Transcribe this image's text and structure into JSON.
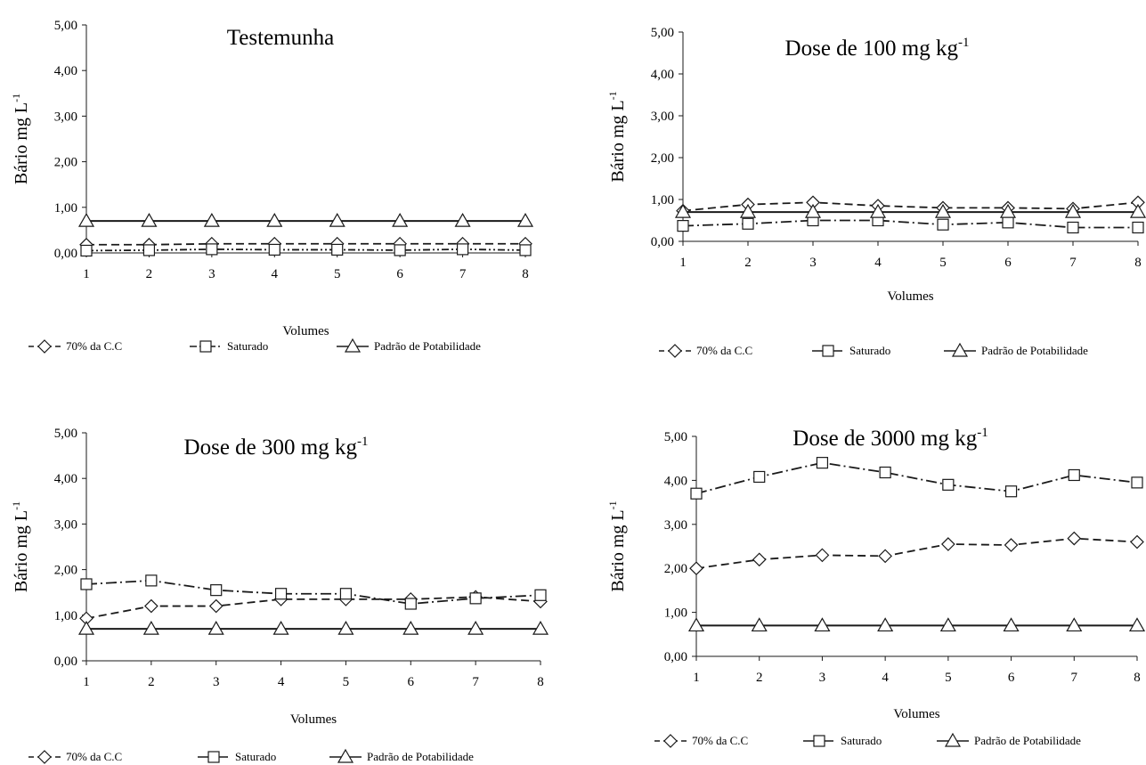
{
  "shared": {
    "xlabel": "Volumes",
    "ylabel": "Bário mg L",
    "ylabel_sup": "-1",
    "title_unit_sup": "-1",
    "y_ticks": [
      "0,00",
      "1,00",
      "2,00",
      "3,00",
      "4,00",
      "5,00"
    ],
    "x_ticks": [
      "1",
      "2",
      "3",
      "4",
      "5",
      "6",
      "7",
      "8"
    ],
    "legend": [
      "70% da C.C",
      "Saturado",
      "Padrão de Potabilidade"
    ],
    "colors": {
      "line": "#1a1a1a",
      "background": "#ffffff"
    }
  },
  "chart_data": [
    {
      "type": "line",
      "title": "Testemunha",
      "title_sup": "",
      "xlabel": "Volumes",
      "ylabel": "Bário mg L-1",
      "ylim": [
        0,
        5
      ],
      "x": [
        1,
        2,
        3,
        4,
        5,
        6,
        7,
        8
      ],
      "legend_position": "bottom",
      "series": [
        {
          "name": "70% da C.C",
          "marker": "diamond",
          "dash": "dashed",
          "values": [
            0.18,
            0.18,
            0.2,
            0.2,
            0.2,
            0.2,
            0.2,
            0.2
          ]
        },
        {
          "name": "Saturado",
          "marker": "square",
          "dash": "dash-dot-dot",
          "values": [
            0.05,
            0.06,
            0.08,
            0.07,
            0.07,
            0.06,
            0.08,
            0.06
          ]
        },
        {
          "name": "Padrão de Potabilidade",
          "marker": "triangle",
          "dash": "solid",
          "values": [
            0.7,
            0.7,
            0.7,
            0.7,
            0.7,
            0.7,
            0.7,
            0.7
          ]
        }
      ]
    },
    {
      "type": "line",
      "title": "Dose de 100 mg kg",
      "title_sup": "-1",
      "xlabel": "Volumes",
      "ylabel": "Bário mg L-1",
      "ylim": [
        0,
        5
      ],
      "x": [
        1,
        2,
        3,
        4,
        5,
        6,
        7,
        8
      ],
      "legend_position": "bottom",
      "series": [
        {
          "name": "70% da C.C",
          "marker": "diamond",
          "dash": "dashed",
          "values": [
            0.73,
            0.88,
            0.93,
            0.85,
            0.8,
            0.8,
            0.78,
            0.93
          ]
        },
        {
          "name": "Saturado",
          "marker": "square",
          "dash": "dash-dot",
          "values": [
            0.37,
            0.42,
            0.5,
            0.5,
            0.4,
            0.45,
            0.33,
            0.33
          ]
        },
        {
          "name": "Padrão de Potabilidade",
          "marker": "triangle",
          "dash": "solid",
          "values": [
            0.7,
            0.7,
            0.7,
            0.7,
            0.7,
            0.7,
            0.7,
            0.7
          ]
        }
      ]
    },
    {
      "type": "line",
      "title": "Dose de 300 mg kg",
      "title_sup": "-1",
      "xlabel": "Volumes",
      "ylabel": "Bário mg L-1",
      "ylim": [
        0,
        5
      ],
      "x": [
        1,
        2,
        3,
        4,
        5,
        6,
        7,
        8
      ],
      "legend_position": "bottom",
      "series": [
        {
          "name": "70% da C.C",
          "marker": "diamond",
          "dash": "dashed",
          "values": [
            0.93,
            1.2,
            1.2,
            1.35,
            1.35,
            1.35,
            1.4,
            1.3
          ]
        },
        {
          "name": "Saturado",
          "marker": "square",
          "dash": "dash-dot",
          "values": [
            1.68,
            1.76,
            1.55,
            1.47,
            1.47,
            1.25,
            1.37,
            1.44
          ]
        },
        {
          "name": "Padrão de Potabilidade",
          "marker": "triangle",
          "dash": "solid",
          "values": [
            0.7,
            0.7,
            0.7,
            0.7,
            0.7,
            0.7,
            0.7,
            0.7
          ]
        }
      ]
    },
    {
      "type": "line",
      "title": "Dose de 3000 mg kg",
      "title_sup": "-1",
      "xlabel": "Volumes",
      "ylabel": "Bário mg L-1",
      "ylim": [
        0,
        5
      ],
      "x": [
        1,
        2,
        3,
        4,
        5,
        6,
        7,
        8
      ],
      "legend_position": "bottom",
      "series": [
        {
          "name": "70% da C.C",
          "marker": "diamond",
          "dash": "dashed",
          "values": [
            2.0,
            2.2,
            2.3,
            2.28,
            2.55,
            2.53,
            2.68,
            2.6
          ]
        },
        {
          "name": "Saturado",
          "marker": "square",
          "dash": "dash-dot",
          "values": [
            3.7,
            4.08,
            4.4,
            4.18,
            3.9,
            3.75,
            4.12,
            3.95
          ]
        },
        {
          "name": "Padrão de Potabilidade",
          "marker": "triangle",
          "dash": "solid",
          "values": [
            0.7,
            0.7,
            0.7,
            0.7,
            0.7,
            0.7,
            0.7,
            0.7
          ]
        }
      ]
    }
  ]
}
